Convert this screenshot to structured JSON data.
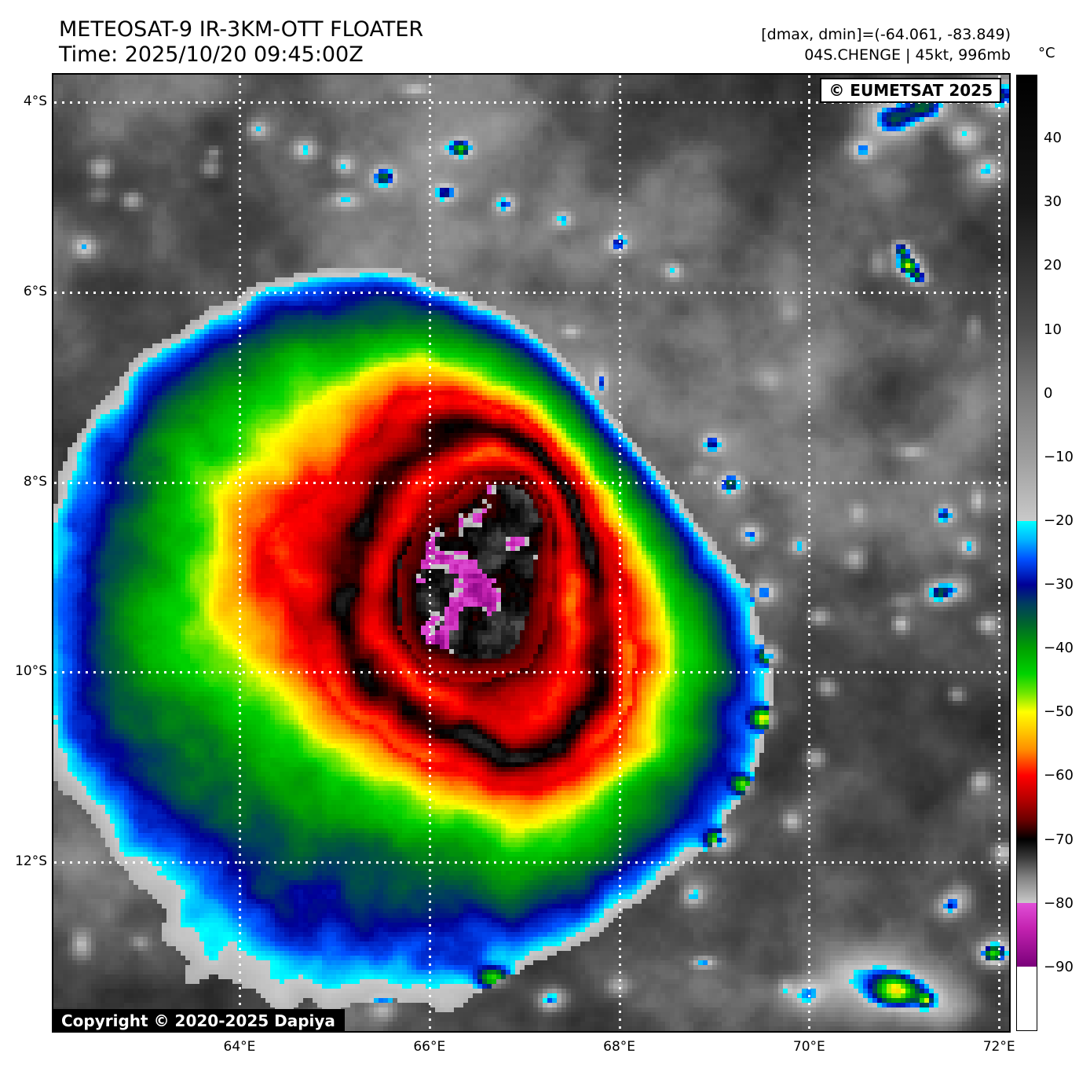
{
  "header": {
    "title": "METEOSAT-9 IR-3KM-OTT FLOATER",
    "time": "Time: 2025/10/20 09:45:00Z",
    "dmax_dmin": "[dmax, dmin]=(-64.061, -83.849)",
    "storm": "04S.CHENGE | 45kt, 996mb"
  },
  "map": {
    "badge": "© EUMETSAT 2025",
    "copyright": "Copyright © 2020-2025 Dapiya",
    "lat_labels": [
      "4°S",
      "6°S",
      "8°S",
      "10°S",
      "12°S"
    ],
    "lat_values": [
      4,
      6,
      8,
      10,
      12
    ],
    "lon_labels": [
      "64°E",
      "66°E",
      "68°E",
      "70°E",
      "72°E"
    ],
    "lon_values": [
      64,
      66,
      68,
      70,
      72
    ]
  },
  "colorbar": {
    "unit": "°C",
    "vmax": 50,
    "vmin": -100,
    "tick_values": [
      40,
      30,
      20,
      10,
      0,
      -10,
      -20,
      -30,
      -40,
      -50,
      -60,
      -70,
      -80,
      -90
    ],
    "tick_labels": [
      "40",
      "30",
      "20",
      "10",
      "0",
      "−10",
      "−20",
      "−30",
      "−40",
      "−50",
      "−60",
      "−70",
      "−80",
      "−90"
    ],
    "stops": [
      [
        50,
        "#000000"
      ],
      [
        30,
        "#161616"
      ],
      [
        10,
        "#4f4f4f"
      ],
      [
        0,
        "#7b7b7b"
      ],
      [
        -10,
        "#9d9d9d"
      ],
      [
        -20,
        "#c9c9c9"
      ],
      [
        -20,
        "#00ffff"
      ],
      [
        -23,
        "#00b4ff"
      ],
      [
        -26,
        "#0050ff"
      ],
      [
        -30,
        "#000096"
      ],
      [
        -33,
        "#003d5f"
      ],
      [
        -36,
        "#00632f"
      ],
      [
        -40,
        "#00a000"
      ],
      [
        -44,
        "#00d200"
      ],
      [
        -47,
        "#6ee600"
      ],
      [
        -50,
        "#ffff00"
      ],
      [
        -53,
        "#ffc800"
      ],
      [
        -56,
        "#ff8c00"
      ],
      [
        -60,
        "#ff0000"
      ],
      [
        -64,
        "#b00000"
      ],
      [
        -67,
        "#6a0000"
      ],
      [
        -70,
        "#000000"
      ],
      [
        -73,
        "#3c3c3c"
      ],
      [
        -76,
        "#828282"
      ],
      [
        -80,
        "#c9c9c9"
      ],
      [
        -80,
        "#e14fd7"
      ],
      [
        -84,
        "#c322b0"
      ],
      [
        -90,
        "#7a007a"
      ],
      [
        -90,
        "#ffffff"
      ],
      [
        -100,
        "#ffffff"
      ]
    ]
  }
}
